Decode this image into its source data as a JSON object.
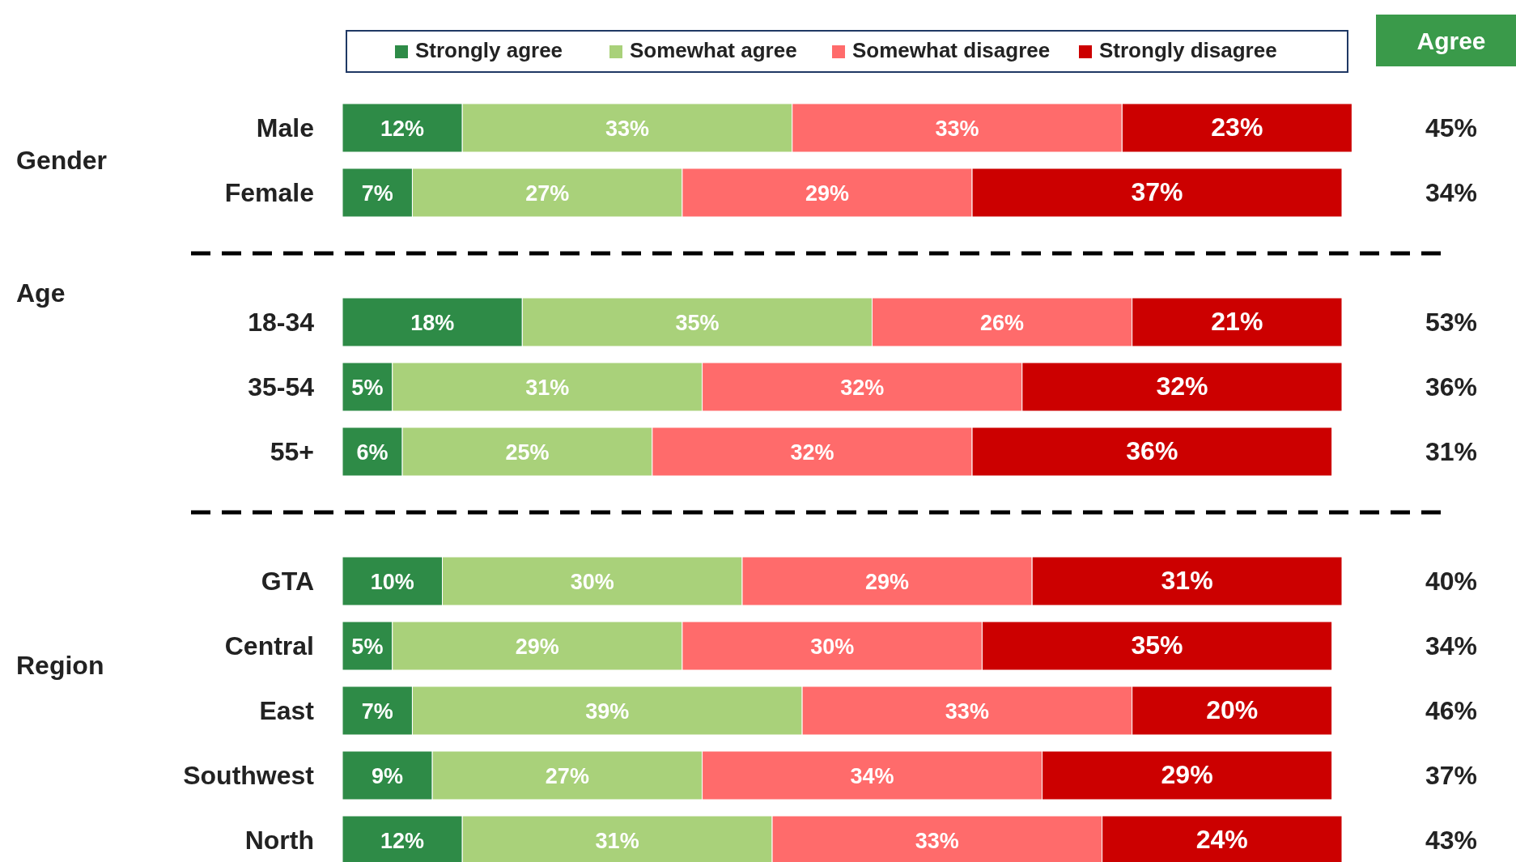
{
  "chart_data": {
    "type": "bar",
    "orientation": "horizontal",
    "stacked": true,
    "legend": "top",
    "categories": [
      "Male",
      "Female",
      "18-34",
      "35-54",
      "55+",
      "GTA",
      "Central",
      "East",
      "Southwest",
      "North"
    ],
    "series": [
      {
        "name": "Strongly agree",
        "color": "#2e8b47",
        "values": [
          12,
          7,
          18,
          5,
          6,
          10,
          5,
          7,
          9,
          12
        ],
        "value_labels": [
          "12%",
          "7%",
          "18%",
          "5%",
          "6%",
          "10%",
          "5%",
          "7%",
          "9%",
          "12%"
        ]
      },
      {
        "name": "Somewhat agree",
        "color": "#a9d17a",
        "values": [
          33,
          27,
          35,
          31,
          25,
          30,
          29,
          39,
          27,
          31
        ],
        "value_labels": [
          "33%",
          "27%",
          "35%",
          "31%",
          "25%",
          "30%",
          "29%",
          "39%",
          "27%",
          "31%"
        ]
      },
      {
        "name": "Somewhat disagree",
        "color": "#ff6b6b",
        "values": [
          33,
          29,
          26,
          32,
          32,
          29,
          30,
          33,
          34,
          33
        ],
        "value_labels": [
          "33%",
          "29%",
          "26%",
          "32%",
          "32%",
          "29%",
          "30%",
          "33%",
          "34%",
          "33%"
        ]
      },
      {
        "name": "Strongly disagree",
        "color": "#cc0000",
        "values": [
          23,
          37,
          21,
          32,
          36,
          31,
          35,
          20,
          29,
          24
        ],
        "value_labels": [
          "23%",
          "37%",
          "21%",
          "32%",
          "36%",
          "31%",
          "35%",
          "20%",
          "29%",
          "24%"
        ]
      }
    ],
    "annotations": [
      "Agree",
      "45%",
      "34%",
      "53%",
      "36%",
      "31%",
      "40%",
      "34%",
      "46%",
      "37%",
      "43%",
      "Gender",
      "Age",
      "Region"
    ]
  }
}
